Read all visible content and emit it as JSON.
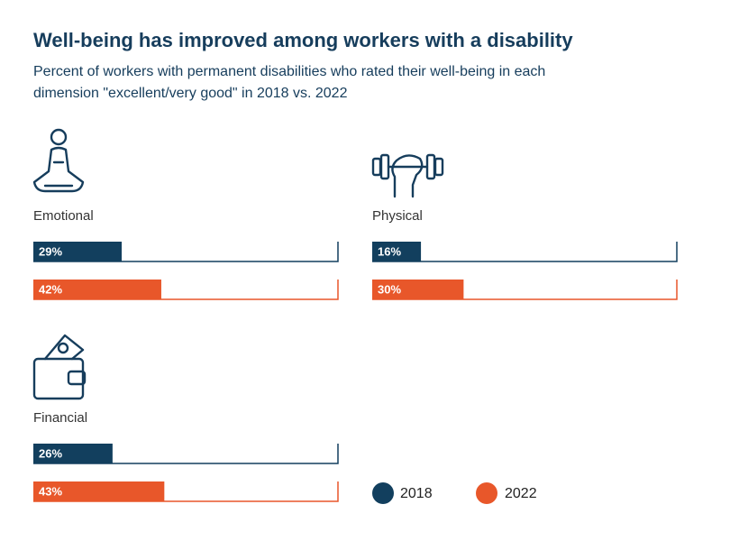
{
  "chart_data": {
    "type": "bar",
    "title": "Well-being has improved among workers with a disability",
    "subtitle": [
      "Percent of workers with permanent disabilities who rated their well-being in each",
      "dimension \"excellent/very good\" in 2018 vs. 2022"
    ],
    "categories": [
      "Emotional",
      "Physical",
      "Financial"
    ],
    "series": [
      {
        "name": "2018",
        "color": "#123f5e",
        "values": [
          29,
          16,
          26
        ],
        "value_labels": [
          "29%",
          "16%",
          "26%"
        ]
      },
      {
        "name": "2022",
        "color": "#e8572a",
        "values": [
          42,
          30,
          43
        ],
        "value_labels": [
          "42%",
          "30%",
          "43%"
        ]
      }
    ],
    "xlim": [
      0,
      100
    ]
  }
}
